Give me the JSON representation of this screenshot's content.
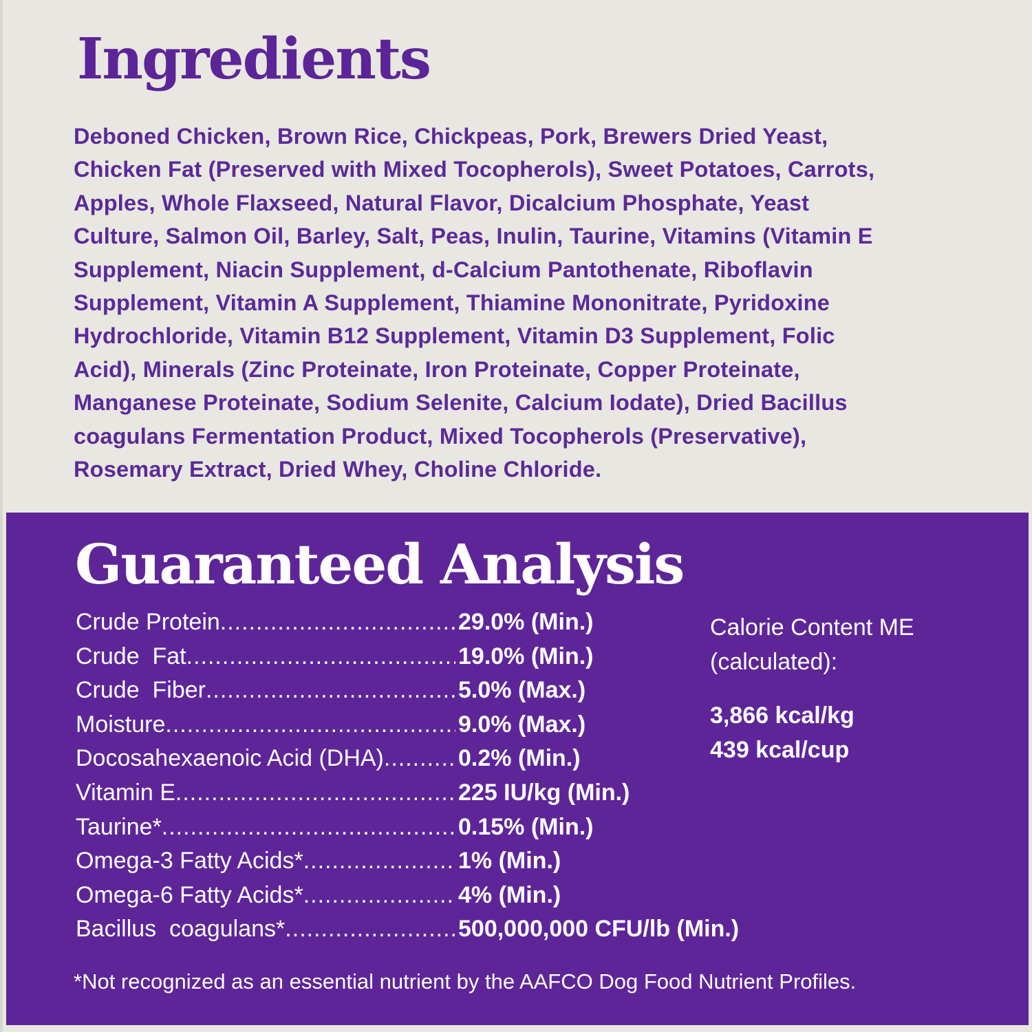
{
  "ingredients": {
    "title": "Ingredients",
    "lines": [
      "Deboned Chicken, Brown Rice, Chickpeas, Pork, Brewers Dried Yeast,",
      "Chicken Fat (Preserved with Mixed Tocopherols), Sweet Potatoes, Carrots,",
      "Apples, Whole Flaxseed, Natural Flavor, Dicalcium Phosphate, Yeast",
      "Culture, Salmon Oil, Barley, Salt, Peas, Inulin, Taurine, Vitamins (Vitamin E",
      "Supplement, Niacin Supplement, d-Calcium Pantothenate, Riboflavin",
      "Supplement, Vitamin A Supplement, Thiamine Mononitrate, Pyridoxine",
      "Hydrochloride, Vitamin B12 Supplement, Vitamin D3 Supplement, Folic",
      "Acid), Minerals (Zinc Proteinate, Iron Proteinate, Copper Proteinate,",
      "Manganese Proteinate, Sodium Selenite, Calcium Iodate), Dried Bacillus",
      "coagulans Fermentation Product, Mixed Tocopherols (Preservative),",
      "Rosemary Extract, Dried Whey, Choline Chloride."
    ]
  },
  "analysis": {
    "title": "Guaranteed Analysis",
    "rows": [
      {
        "label": "Crude Protein",
        "value": "29.0% (Min.)"
      },
      {
        "label": "Crude  Fat",
        "value": "19.0% (Min.)"
      },
      {
        "label": "Crude  Fiber",
        "value": "5.0% (Max.)"
      },
      {
        "label": "Moisture",
        "value": "9.0% (Max.)"
      },
      {
        "label": "Docosahexaenoic Acid (DHA)",
        "value": "0.2% (Min.)"
      },
      {
        "label": "Vitamin E",
        "value": "225 IU/kg (Min.)"
      },
      {
        "label": "Taurine*",
        "value": "0.15% (Min.)"
      },
      {
        "label": "Omega-3 Fatty Acids*",
        "value": "1% (Min.)"
      },
      {
        "label": "Omega-6 Fatty Acids*",
        "value": "4% (Min.)"
      },
      {
        "label": "Bacillus  coagulans*",
        "value": "500,000,000 CFU/lb (Min.)"
      }
    ],
    "calorie": {
      "label_line1": "Calorie Content ME",
      "label_line2": "(calculated):",
      "per_kg": "3,866 kcal/kg",
      "per_cup": "439 kcal/cup"
    },
    "footnote": "*Not recognized as an essential nutrient by the AAFCO Dog Food Nutrient Profiles."
  },
  "colors": {
    "purple": "#5e2599",
    "background": "#e9e7e1",
    "text_on_light": "#5a2a98"
  }
}
